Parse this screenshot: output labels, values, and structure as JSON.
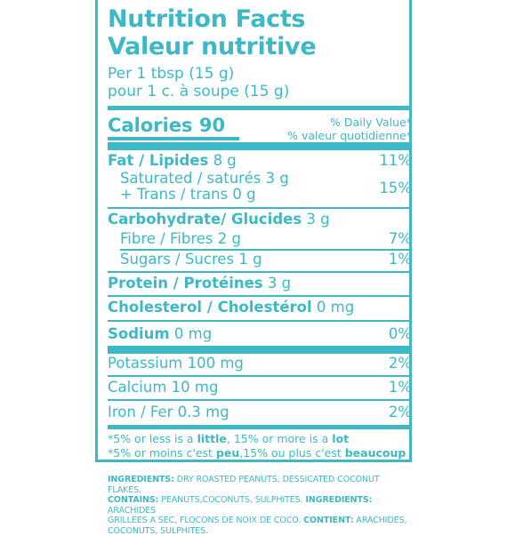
{
  "header": {
    "title_en": "Nutrition Facts",
    "title_fr": "Valeur nutritive",
    "serving_en": "Per 1 tbsp (15 g)",
    "serving_fr": "pour 1 c. à soupe (15 g)"
  },
  "calories": {
    "label": "Calories",
    "value": "90"
  },
  "daily_value": {
    "en": "% Daily Value*",
    "fr": "% valeur quotidienne*"
  },
  "nutrients": {
    "fat": {
      "label": "Fat / Lipides",
      "amount": "8 g",
      "pct": "11%"
    },
    "saturated": {
      "label": "Saturated / saturés",
      "amount": "3 g"
    },
    "trans": {
      "label": "+ Trans / trans",
      "amount": "0 g",
      "pct": "15%"
    },
    "carb": {
      "label": "Carbohydrate/ Glucides",
      "amount": "3 g"
    },
    "fibre": {
      "label": "Fibre / Fibres",
      "amount": "2 g",
      "pct": "7%"
    },
    "sugars": {
      "label": "Sugars / Sucres",
      "amount": "1 g",
      "pct": "1%"
    },
    "protein": {
      "label": "Protein / Protéines",
      "amount": "3 g"
    },
    "cholesterol": {
      "label": "Cholesterol / Cholestérol",
      "amount": "0 mg"
    },
    "sodium": {
      "label": "Sodium",
      "amount": "0 mg",
      "pct": "0%"
    },
    "potassium": {
      "label": "Potassium",
      "amount": "100 mg",
      "pct": "2%"
    },
    "calcium": {
      "label": "Calcium",
      "amount": "10 mg",
      "pct": "1%"
    },
    "iron": {
      "label": "Iron / Fer",
      "amount": "0.3 mg",
      "pct": "2%"
    }
  },
  "footnote": {
    "en_pre": "*5% or less is a ",
    "en_little": "little",
    "en_mid": ", 15% or more is a ",
    "en_lot": "lot",
    "fr_pre": "*5% or moins c'est ",
    "fr_peu": "peu",
    "fr_mid": ",15% ou plus c'est ",
    "fr_beaucoup": "beaucoup"
  },
  "ingredients": {
    "l1_b": "INGREDIENTS:",
    "l1": " DRY ROASTED PEANUTS, DESSICATED COCONUT FLAKES.",
    "l2_b": "CONTAINS:",
    "l2": " PEANUTS,COCONUTS, SULPHITES. ",
    "l2_b2": "INGREDIENTS:",
    "l2b": " ARACHIDES",
    "l3": "GRILLEES A SEC, FLOCONS DE NOIX DE COCO. ",
    "l3_b": "CONTIENT:",
    "l3b": " ARACHIDES,",
    "l4": "COCONUTS, SULPHITES."
  },
  "colors": {
    "accent": "#3cb9c4",
    "background": "#ffffff"
  }
}
